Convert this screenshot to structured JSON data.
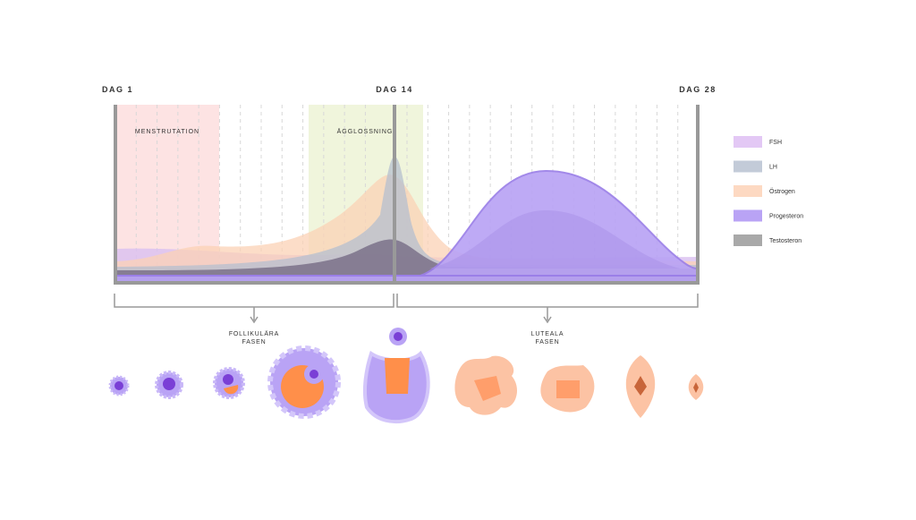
{
  "days": [
    "DAG 1",
    "DAG 14",
    "DAG 28"
  ],
  "bands": [
    "MENSTRUTATION",
    "ÄGGLOSSNING"
  ],
  "legend": [
    {
      "name": "FSH",
      "color": "#e3c8f5"
    },
    {
      "name": "LH",
      "color": "#c3cbd8"
    },
    {
      "name": "Östrogen",
      "color": "#fdd9c2"
    },
    {
      "name": "Progesteron",
      "color": "#b9a3f5"
    },
    {
      "name": "Testosteron",
      "color": "#a9a9a9"
    }
  ],
  "phases": [
    {
      "lines": [
        "FOLLIKULÄRA",
        "FASEN"
      ]
    },
    {
      "lines": [
        "LUTEALA",
        "FASEN"
      ]
    }
  ]
}
